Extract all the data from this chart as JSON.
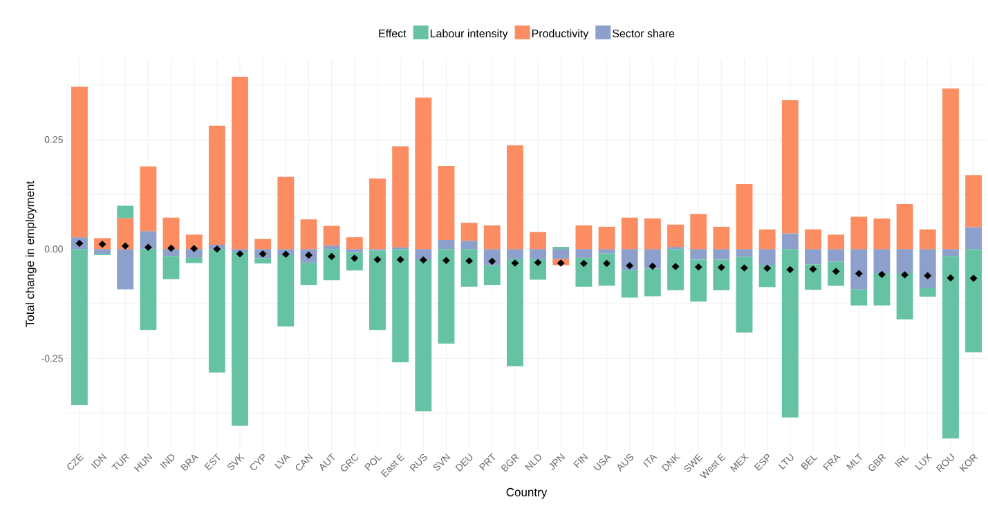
{
  "chart_data": {
    "type": "bar",
    "stacked": true,
    "xlabel": "Country",
    "ylabel": "Total change in employment",
    "legend_title": "Effect",
    "legend": "top",
    "grid": true,
    "categories": [
      "CZE",
      "IDN",
      "TUR",
      "HUN",
      "IND",
      "BRA",
      "EST",
      "SVK",
      "CYP",
      "LVA",
      "CAN",
      "AUT",
      "GRC",
      "POL",
      "East E",
      "RUS",
      "SVN",
      "DEU",
      "PRT",
      "BGR",
      "NLD",
      "JPN",
      "FIN",
      "USA",
      "AUS",
      "ITA",
      "DNK",
      "SWE",
      "West E",
      "MEX",
      "ESP",
      "LTU",
      "BEL",
      "FRA",
      "MLT",
      "GBR",
      "IRL",
      "LUX",
      "ROU",
      "KOR"
    ],
    "ylim": [
      -0.458,
      0.435
    ],
    "yticks": [
      {
        "value": -0.375,
        "label": null
      },
      -0.25,
      {
        "value": -0.125,
        "label": null
      },
      {
        "value": 0,
        "label": "0.00"
      },
      {
        "value": 0.125,
        "label": null
      },
      0.25,
      {
        "value": 0.375,
        "label": null
      }
    ],
    "series": [
      {
        "name": "Sector share",
        "color": "#8da0cb",
        "values": [
          0.027,
          -0.011,
          -0.092,
          0.041,
          -0.016,
          -0.02,
          0.01,
          -0.006,
          -0.021,
          -0.014,
          -0.031,
          0.008,
          -0.008,
          -0.003,
          0.004,
          -0.025,
          0.021,
          0.019,
          -0.037,
          -0.023,
          -0.023,
          -0.023,
          -0.02,
          -0.01,
          -0.048,
          -0.045,
          0.005,
          -0.024,
          -0.024,
          -0.018,
          -0.036,
          0.036,
          -0.035,
          -0.029,
          -0.092,
          -0.055,
          -0.055,
          -0.088,
          -0.016,
          0.05
        ]
      },
      {
        "name": "Productivity",
        "color": "#fc8d62",
        "values": [
          0.344,
          0.025,
          0.071,
          0.148,
          0.072,
          0.033,
          0.272,
          0.394,
          0.023,
          0.165,
          0.068,
          0.045,
          0.027,
          0.161,
          0.231,
          0.346,
          0.169,
          0.041,
          0.054,
          0.237,
          0.039,
          -0.014,
          0.054,
          0.051,
          0.072,
          0.07,
          0.051,
          0.08,
          0.051,
          0.149,
          0.045,
          0.304,
          0.045,
          0.033,
          0.074,
          0.07,
          0.103,
          0.045,
          0.367,
          0.119
        ]
      },
      {
        "name": "Labour intensity",
        "color": "#66c2a5",
        "values": [
          -0.357,
          -0.003,
          0.028,
          -0.185,
          -0.053,
          -0.012,
          -0.282,
          -0.398,
          -0.012,
          -0.163,
          -0.051,
          -0.071,
          -0.041,
          -0.182,
          -0.259,
          -0.346,
          -0.216,
          -0.086,
          -0.045,
          -0.245,
          -0.047,
          0.005,
          -0.066,
          -0.074,
          -0.063,
          -0.063,
          -0.094,
          -0.096,
          -0.07,
          -0.173,
          -0.051,
          -0.385,
          -0.058,
          -0.055,
          -0.037,
          -0.074,
          -0.106,
          -0.021,
          -0.417,
          -0.236
        ]
      },
      {
        "type": "scatter",
        "marker": "diamond",
        "color": "#000000",
        "values": [
          0.013,
          0.011,
          0.007,
          0.004,
          0.002,
          0.001,
          0.0,
          -0.011,
          -0.011,
          -0.012,
          -0.014,
          -0.017,
          -0.021,
          -0.024,
          -0.024,
          -0.025,
          -0.026,
          -0.027,
          -0.028,
          -0.032,
          -0.031,
          -0.032,
          -0.033,
          -0.033,
          -0.038,
          -0.039,
          -0.04,
          -0.041,
          -0.042,
          -0.043,
          -0.044,
          -0.047,
          -0.046,
          -0.051,
          -0.056,
          -0.058,
          -0.059,
          -0.061,
          -0.066,
          -0.067
        ]
      }
    ]
  }
}
